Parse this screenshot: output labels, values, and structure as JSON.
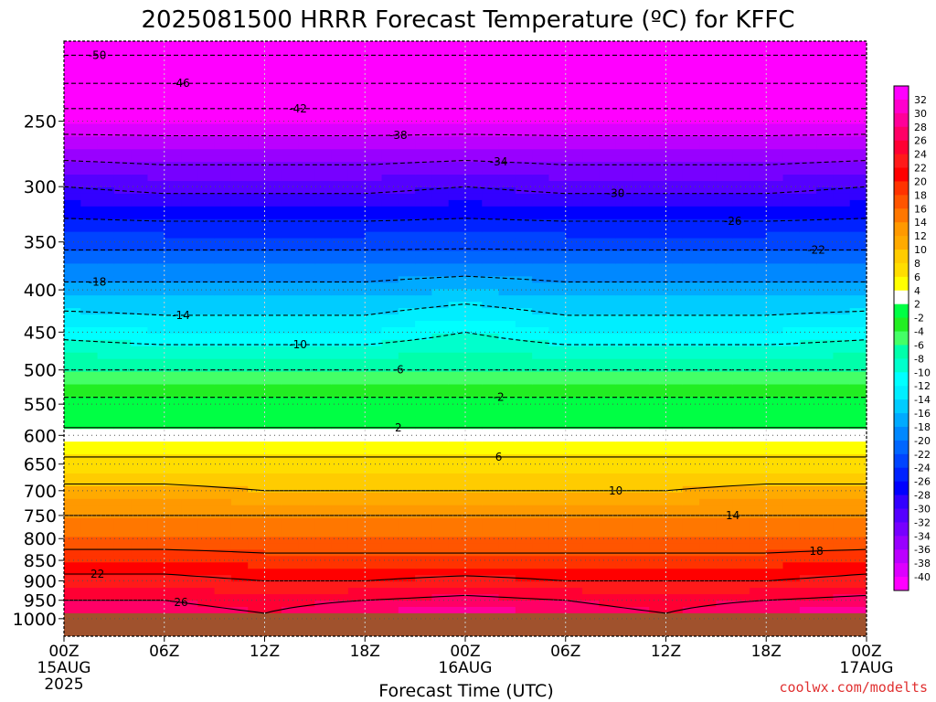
{
  "chart_data": {
    "type": "heatmap",
    "title": "2025081500 HRRR Forecast Temperature (ºC) for KFFC",
    "xlabel": "Forecast Time (UTC)",
    "ylabel": "",
    "y_scale": "log",
    "y_inverted": true,
    "ylim": [
      1050,
      200
    ],
    "y_ticks": [
      250,
      300,
      350,
      400,
      450,
      500,
      550,
      600,
      650,
      700,
      750,
      800,
      850,
      900,
      950,
      1000
    ],
    "x_ticks": [
      {
        "hour": 0,
        "lines": [
          "00Z",
          "15AUG",
          "2025"
        ]
      },
      {
        "hour": 6,
        "lines": [
          "06Z"
        ]
      },
      {
        "hour": 12,
        "lines": [
          "12Z"
        ]
      },
      {
        "hour": 18,
        "lines": [
          "18Z"
        ]
      },
      {
        "hour": 24,
        "lines": [
          "00Z",
          "16AUG"
        ]
      },
      {
        "hour": 30,
        "lines": [
          "06Z"
        ]
      },
      {
        "hour": 36,
        "lines": [
          "12Z"
        ]
      },
      {
        "hour": 42,
        "lines": [
          "18Z"
        ]
      },
      {
        "hour": 48,
        "lines": [
          "00Z",
          "17AUG"
        ]
      }
    ],
    "xlim": [
      0,
      48
    ],
    "grid": true,
    "ground_level_hpa": 985,
    "ground_color": "#a0522d",
    "profile_hours": [
      0,
      6,
      12,
      18,
      24,
      30,
      36,
      42,
      48
    ],
    "temperature_profile": [
      {
        "pressure": 200,
        "temps_c": [
          -52,
          -52,
          -52,
          -52,
          -52,
          -52,
          -52,
          -52,
          -52
        ]
      },
      {
        "pressure": 225,
        "temps_c": [
          -46,
          -46,
          -46,
          -46,
          -46,
          -46,
          -46,
          -46,
          -46
        ]
      },
      {
        "pressure": 250,
        "temps_c": [
          -40,
          -40,
          -40,
          -40,
          -40,
          -40,
          -40,
          -40,
          -40
        ]
      },
      {
        "pressure": 300,
        "temps_c": [
          -30,
          -31,
          -31,
          -31,
          -30,
          -31,
          -31,
          -31,
          -30
        ]
      },
      {
        "pressure": 350,
        "temps_c": [
          -23,
          -23,
          -23,
          -23,
          -23,
          -23,
          -23,
          -23,
          -23
        ]
      },
      {
        "pressure": 400,
        "temps_c": [
          -17,
          -17,
          -17,
          -17,
          -16,
          -17,
          -17,
          -17,
          -17
        ]
      },
      {
        "pressure": 450,
        "temps_c": [
          -11,
          -12,
          -12,
          -12,
          -10,
          -12,
          -12,
          -12,
          -11
        ]
      },
      {
        "pressure": 500,
        "temps_c": [
          -6,
          -6,
          -6,
          -6,
          -6,
          -6,
          -6,
          -6,
          -6
        ]
      },
      {
        "pressure": 550,
        "temps_c": [
          -1,
          -1,
          -1,
          -1,
          -1,
          -1,
          -1,
          -1,
          -1
        ]
      },
      {
        "pressure": 600,
        "temps_c": [
          3,
          3,
          3,
          3,
          3,
          3,
          3,
          3,
          3
        ]
      },
      {
        "pressure": 650,
        "temps_c": [
          7,
          7,
          7,
          7,
          7,
          7,
          7,
          7,
          7
        ]
      },
      {
        "pressure": 700,
        "temps_c": [
          11,
          11,
          10,
          10,
          10,
          10,
          10,
          11,
          11
        ]
      },
      {
        "pressure": 750,
        "temps_c": [
          14,
          14,
          14,
          14,
          14,
          14,
          14,
          14,
          14
        ]
      },
      {
        "pressure": 800,
        "temps_c": [
          16,
          16,
          16,
          16,
          16,
          16,
          16,
          16,
          16
        ]
      },
      {
        "pressure": 850,
        "temps_c": [
          20,
          20,
          19,
          19,
          19,
          19,
          19,
          19,
          20
        ]
      },
      {
        "pressure": 900,
        "temps_c": [
          23,
          23,
          22,
          22,
          23,
          22,
          22,
          22,
          23
        ]
      },
      {
        "pressure": 950,
        "temps_c": [
          26,
          26,
          25,
          26,
          27,
          26,
          25,
          26,
          27
        ]
      },
      {
        "pressure": 985,
        "temps_c": [
          27,
          27,
          26,
          28,
          30,
          27,
          26,
          28,
          30
        ]
      }
    ],
    "colorbar": {
      "levels": [
        "32",
        "30",
        "28",
        "26",
        "24",
        "22",
        "20",
        "18",
        "16",
        "14",
        "12",
        "10",
        "8",
        "6",
        "4",
        "2",
        "-2",
        "-4",
        "-6",
        "-8",
        "-10",
        "-12",
        "-14",
        "-16",
        "-18",
        "-20",
        "-22",
        "-24",
        "-26",
        "-28",
        "-30",
        "-32",
        "-34",
        "-36",
        "-38",
        "-40"
      ],
      "colors": [
        "#ff00ff",
        "#ff00cc",
        "#ff0099",
        "#ff0066",
        "#ff0033",
        "#ff1a1a",
        "#ff0000",
        "#ff3300",
        "#ff5500",
        "#ff7700",
        "#ff9900",
        "#ffaa00",
        "#ffcc00",
        "#ffdd00",
        "#ffff00",
        "#ffffff",
        "#00ff44",
        "#22ee22",
        "#44ff66",
        "#00ffaa",
        "#00ffcc",
        "#00ffff",
        "#00eeff",
        "#00ccff",
        "#00aaff",
        "#0088ff",
        "#0066ff",
        "#0044ff",
        "#0022ff",
        "#0000ff",
        "#3300ff",
        "#5500ff",
        "#7700ff",
        "#9900ff",
        "#bb00ff",
        "#dd00ff",
        "#ff00ff"
      ]
    },
    "contour_labels": {
      "dashed_black": [
        "-50",
        "-46",
        "-42",
        "-38",
        "-34",
        "-30",
        "-26",
        "-22",
        "-18",
        "-14",
        "-10",
        "-6",
        "-2"
      ],
      "solid_black": [
        "2",
        "6",
        "10",
        "14",
        "18",
        "22",
        "26"
      ]
    }
  },
  "credit": "coolwx.com/modelts"
}
